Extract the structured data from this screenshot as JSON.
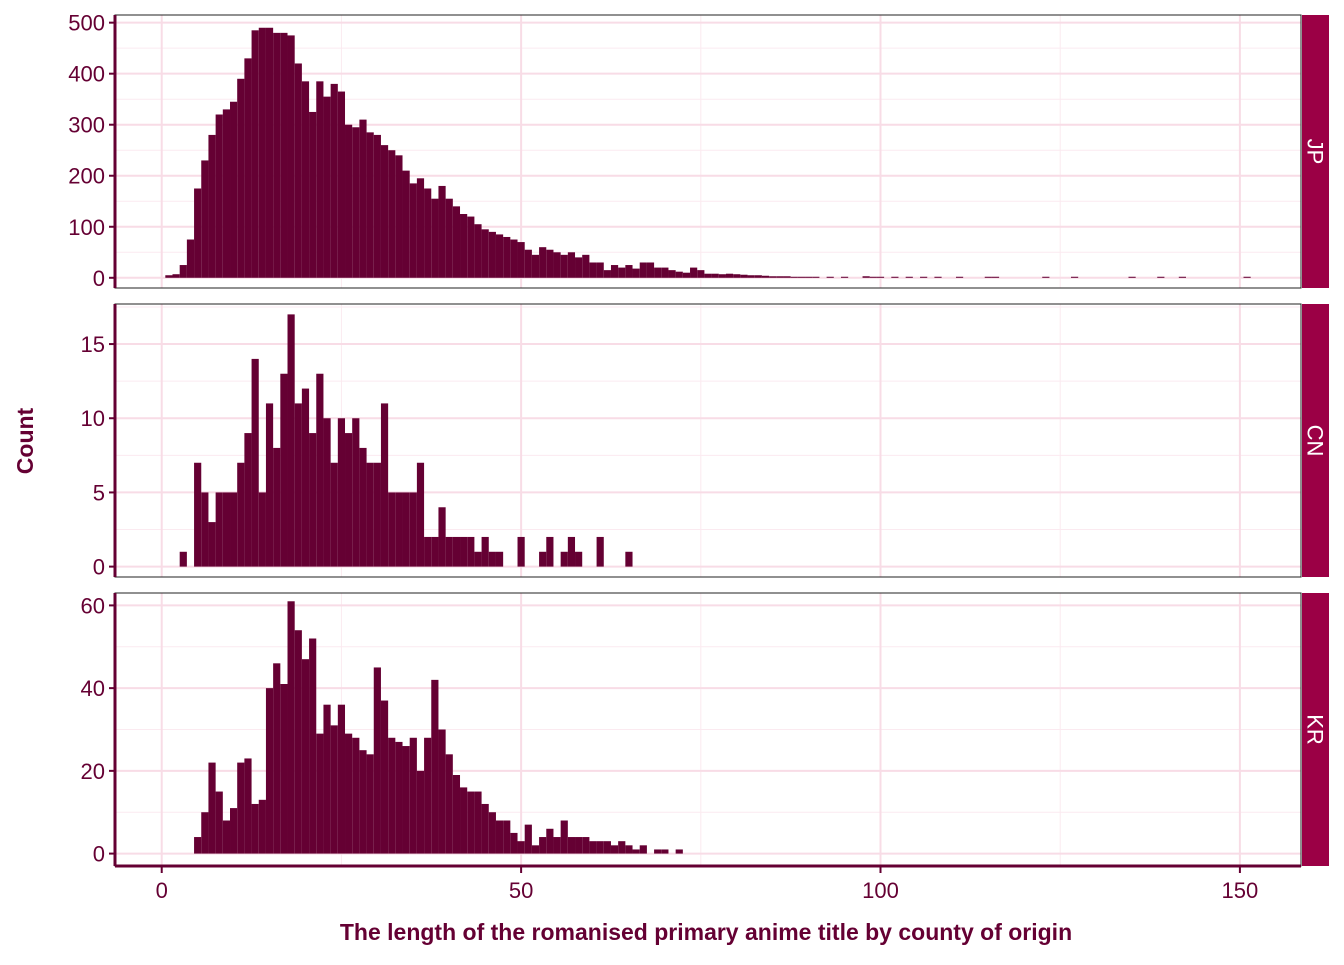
{
  "chart_data": {
    "type": "bar",
    "subtype": "faceted-histogram",
    "xlabel": "The length of the romanised primary anime title by county of origin",
    "ylabel": "Count",
    "xlim": [
      -6.5,
      158.5
    ],
    "x_ticks": [
      0,
      50,
      100,
      150
    ],
    "bin_width": 1,
    "grid": true,
    "legend": "none",
    "colors": {
      "bar": "#650033",
      "strip": "#9B0045",
      "strip_text": "#ffffff",
      "text": "#650033",
      "grid_major": "#F8DCE6",
      "grid_minor": "#FBEAF0"
    },
    "facets": [
      {
        "label": "JP",
        "ylim": [
          -20,
          515
        ],
        "y_ticks": [
          0,
          100,
          200,
          300,
          400,
          500
        ],
        "bins": [
          {
            "x": 1,
            "count": 5
          },
          {
            "x": 2,
            "count": 7
          },
          {
            "x": 3,
            "count": 25
          },
          {
            "x": 4,
            "count": 75
          },
          {
            "x": 5,
            "count": 175
          },
          {
            "x": 6,
            "count": 230
          },
          {
            "x": 7,
            "count": 280
          },
          {
            "x": 8,
            "count": 320
          },
          {
            "x": 9,
            "count": 330
          },
          {
            "x": 10,
            "count": 345
          },
          {
            "x": 11,
            "count": 390
          },
          {
            "x": 12,
            "count": 430
          },
          {
            "x": 13,
            "count": 485
          },
          {
            "x": 14,
            "count": 490
          },
          {
            "x": 15,
            "count": 490
          },
          {
            "x": 16,
            "count": 480
          },
          {
            "x": 17,
            "count": 480
          },
          {
            "x": 18,
            "count": 475
          },
          {
            "x": 19,
            "count": 420
          },
          {
            "x": 20,
            "count": 385
          },
          {
            "x": 21,
            "count": 325
          },
          {
            "x": 22,
            "count": 385
          },
          {
            "x": 23,
            "count": 355
          },
          {
            "x": 24,
            "count": 380
          },
          {
            "x": 25,
            "count": 365
          },
          {
            "x": 26,
            "count": 300
          },
          {
            "x": 27,
            "count": 295
          },
          {
            "x": 28,
            "count": 310
          },
          {
            "x": 29,
            "count": 285
          },
          {
            "x": 30,
            "count": 280
          },
          {
            "x": 31,
            "count": 260
          },
          {
            "x": 32,
            "count": 250
          },
          {
            "x": 33,
            "count": 240
          },
          {
            "x": 34,
            "count": 210
          },
          {
            "x": 35,
            "count": 185
          },
          {
            "x": 36,
            "count": 195
          },
          {
            "x": 37,
            "count": 175
          },
          {
            "x": 38,
            "count": 155
          },
          {
            "x": 39,
            "count": 180
          },
          {
            "x": 40,
            "count": 155
          },
          {
            "x": 41,
            "count": 140
          },
          {
            "x": 42,
            "count": 125
          },
          {
            "x": 43,
            "count": 120
          },
          {
            "x": 44,
            "count": 105
          },
          {
            "x": 45,
            "count": 95
          },
          {
            "x": 46,
            "count": 90
          },
          {
            "x": 47,
            "count": 85
          },
          {
            "x": 48,
            "count": 80
          },
          {
            "x": 49,
            "count": 75
          },
          {
            "x": 50,
            "count": 70
          },
          {
            "x": 51,
            "count": 55
          },
          {
            "x": 52,
            "count": 45
          },
          {
            "x": 53,
            "count": 60
          },
          {
            "x": 54,
            "count": 55
          },
          {
            "x": 55,
            "count": 50
          },
          {
            "x": 56,
            "count": 45
          },
          {
            "x": 57,
            "count": 50
          },
          {
            "x": 58,
            "count": 40
          },
          {
            "x": 59,
            "count": 45
          },
          {
            "x": 60,
            "count": 30
          },
          {
            "x": 61,
            "count": 30
          },
          {
            "x": 62,
            "count": 15
          },
          {
            "x": 63,
            "count": 25
          },
          {
            "x": 64,
            "count": 20
          },
          {
            "x": 65,
            "count": 25
          },
          {
            "x": 66,
            "count": 18
          },
          {
            "x": 67,
            "count": 30
          },
          {
            "x": 68,
            "count": 30
          },
          {
            "x": 69,
            "count": 20
          },
          {
            "x": 70,
            "count": 20
          },
          {
            "x": 71,
            "count": 15
          },
          {
            "x": 72,
            "count": 12
          },
          {
            "x": 73,
            "count": 10
          },
          {
            "x": 74,
            "count": 20
          },
          {
            "x": 75,
            "count": 15
          },
          {
            "x": 76,
            "count": 8
          },
          {
            "x": 77,
            "count": 8
          },
          {
            "x": 78,
            "count": 7
          },
          {
            "x": 79,
            "count": 8
          },
          {
            "x": 80,
            "count": 7
          },
          {
            "x": 81,
            "count": 6
          },
          {
            "x": 82,
            "count": 5
          },
          {
            "x": 83,
            "count": 5
          },
          {
            "x": 84,
            "count": 4
          },
          {
            "x": 85,
            "count": 3
          },
          {
            "x": 86,
            "count": 3
          },
          {
            "x": 87,
            "count": 3
          },
          {
            "x": 88,
            "count": 2
          },
          {
            "x": 89,
            "count": 2
          },
          {
            "x": 90,
            "count": 2
          },
          {
            "x": 91,
            "count": 2
          },
          {
            "x": 93,
            "count": 2
          },
          {
            "x": 95,
            "count": 2
          },
          {
            "x": 98,
            "count": 3
          },
          {
            "x": 99,
            "count": 2
          },
          {
            "x": 100,
            "count": 2
          },
          {
            "x": 102,
            "count": 2
          },
          {
            "x": 104,
            "count": 2
          },
          {
            "x": 106,
            "count": 2
          },
          {
            "x": 108,
            "count": 2
          },
          {
            "x": 111,
            "count": 2
          },
          {
            "x": 115,
            "count": 2
          },
          {
            "x": 116,
            "count": 2
          },
          {
            "x": 123,
            "count": 2
          },
          {
            "x": 127,
            "count": 2
          },
          {
            "x": 135,
            "count": 2
          },
          {
            "x": 139,
            "count": 2
          },
          {
            "x": 142,
            "count": 2
          },
          {
            "x": 151,
            "count": 2
          }
        ]
      },
      {
        "label": "CN",
        "ylim": [
          -0.7,
          17.7
        ],
        "y_ticks": [
          0,
          5,
          10,
          15
        ],
        "bins": [
          {
            "x": 3,
            "count": 1
          },
          {
            "x": 5,
            "count": 7
          },
          {
            "x": 6,
            "count": 5
          },
          {
            "x": 7,
            "count": 3
          },
          {
            "x": 8,
            "count": 5
          },
          {
            "x": 9,
            "count": 5
          },
          {
            "x": 10,
            "count": 5
          },
          {
            "x": 11,
            "count": 7
          },
          {
            "x": 12,
            "count": 9
          },
          {
            "x": 13,
            "count": 14
          },
          {
            "x": 14,
            "count": 5
          },
          {
            "x": 15,
            "count": 11
          },
          {
            "x": 16,
            "count": 8
          },
          {
            "x": 17,
            "count": 13
          },
          {
            "x": 18,
            "count": 17
          },
          {
            "x": 19,
            "count": 11
          },
          {
            "x": 20,
            "count": 12
          },
          {
            "x": 21,
            "count": 9
          },
          {
            "x": 22,
            "count": 13
          },
          {
            "x": 23,
            "count": 10
          },
          {
            "x": 24,
            "count": 7
          },
          {
            "x": 25,
            "count": 10
          },
          {
            "x": 26,
            "count": 9
          },
          {
            "x": 27,
            "count": 10
          },
          {
            "x": 28,
            "count": 8
          },
          {
            "x": 29,
            "count": 7
          },
          {
            "x": 30,
            "count": 7
          },
          {
            "x": 31,
            "count": 11
          },
          {
            "x": 32,
            "count": 5
          },
          {
            "x": 33,
            "count": 5
          },
          {
            "x": 34,
            "count": 5
          },
          {
            "x": 35,
            "count": 5
          },
          {
            "x": 36,
            "count": 7
          },
          {
            "x": 37,
            "count": 2
          },
          {
            "x": 38,
            "count": 2
          },
          {
            "x": 39,
            "count": 4
          },
          {
            "x": 40,
            "count": 2
          },
          {
            "x": 41,
            "count": 2
          },
          {
            "x": 42,
            "count": 2
          },
          {
            "x": 43,
            "count": 2
          },
          {
            "x": 44,
            "count": 1
          },
          {
            "x": 45,
            "count": 2
          },
          {
            "x": 46,
            "count": 1
          },
          {
            "x": 47,
            "count": 1
          },
          {
            "x": 50,
            "count": 2
          },
          {
            "x": 53,
            "count": 1
          },
          {
            "x": 54,
            "count": 2
          },
          {
            "x": 56,
            "count": 1
          },
          {
            "x": 57,
            "count": 2
          },
          {
            "x": 58,
            "count": 1
          },
          {
            "x": 61,
            "count": 2
          },
          {
            "x": 65,
            "count": 1
          }
        ]
      },
      {
        "label": "KR",
        "ylim": [
          -3,
          63
        ]
      }
    ]
  },
  "kr_bins": [
    {
      "x": 5,
      "count": 4
    },
    {
      "x": 6,
      "count": 10
    },
    {
      "x": 7,
      "count": 22
    },
    {
      "x": 8,
      "count": 15
    },
    {
      "x": 9,
      "count": 8
    },
    {
      "x": 10,
      "count": 11
    },
    {
      "x": 11,
      "count": 22
    },
    {
      "x": 12,
      "count": 23
    },
    {
      "x": 13,
      "count": 12
    },
    {
      "x": 14,
      "count": 13
    },
    {
      "x": 15,
      "count": 40
    },
    {
      "x": 16,
      "count": 46
    },
    {
      "x": 17,
      "count": 41
    },
    {
      "x": 18,
      "count": 61
    },
    {
      "x": 19,
      "count": 54
    },
    {
      "x": 20,
      "count": 47
    },
    {
      "x": 21,
      "count": 52
    },
    {
      "x": 22,
      "count": 29
    },
    {
      "x": 23,
      "count": 36
    },
    {
      "x": 24,
      "count": 31
    },
    {
      "x": 25,
      "count": 36
    },
    {
      "x": 26,
      "count": 29
    },
    {
      "x": 27,
      "count": 28
    },
    {
      "x": 28,
      "count": 25
    },
    {
      "x": 29,
      "count": 24
    },
    {
      "x": 30,
      "count": 45
    },
    {
      "x": 31,
      "count": 37
    },
    {
      "x": 32,
      "count": 28
    },
    {
      "x": 33,
      "count": 27
    },
    {
      "x": 34,
      "count": 26
    },
    {
      "x": 35,
      "count": 28
    },
    {
      "x": 36,
      "count": 20
    },
    {
      "x": 37,
      "count": 28
    },
    {
      "x": 38,
      "count": 42
    },
    {
      "x": 39,
      "count": 30
    },
    {
      "x": 40,
      "count": 24
    },
    {
      "x": 41,
      "count": 19
    },
    {
      "x": 42,
      "count": 16
    },
    {
      "x": 43,
      "count": 15
    },
    {
      "x": 44,
      "count": 15
    },
    {
      "x": 45,
      "count": 12
    },
    {
      "x": 46,
      "count": 10
    },
    {
      "x": 47,
      "count": 8
    },
    {
      "x": 48,
      "count": 8
    },
    {
      "x": 49,
      "count": 5
    },
    {
      "x": 50,
      "count": 3
    },
    {
      "x": 51,
      "count": 7
    },
    {
      "x": 52,
      "count": 2
    },
    {
      "x": 53,
      "count": 4
    },
    {
      "x": 54,
      "count": 6
    },
    {
      "x": 55,
      "count": 4
    },
    {
      "x": 56,
      "count": 8
    },
    {
      "x": 57,
      "count": 4
    },
    {
      "x": 58,
      "count": 4
    },
    {
      "x": 59,
      "count": 4
    },
    {
      "x": 60,
      "count": 3
    },
    {
      "x": 61,
      "count": 3
    },
    {
      "x": 62,
      "count": 3
    },
    {
      "x": 63,
      "count": 2
    },
    {
      "x": 64,
      "count": 3
    },
    {
      "x": 65,
      "count": 2
    },
    {
      "x": 66,
      "count": 1
    },
    {
      "x": 67,
      "count": 2
    },
    {
      "x": 69,
      "count": 1
    },
    {
      "x": 70,
      "count": 1
    },
    {
      "x": 72,
      "count": 1
    }
  ],
  "kr_ticks": [
    0,
    20,
    40,
    60
  ]
}
